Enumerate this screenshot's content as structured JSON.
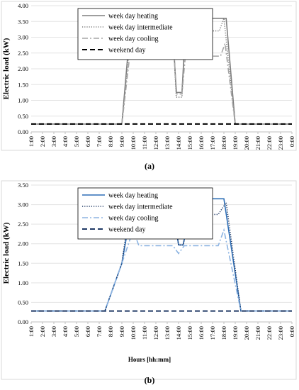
{
  "chart_data": [
    {
      "type": "line",
      "panel_label": "(a)",
      "title": "",
      "xlabel": "",
      "ylabel": "Electric load (kW)",
      "ylim": [
        0,
        4
      ],
      "yticks": [
        "0.00",
        "0.50",
        "1.00",
        "1.50",
        "2.00",
        "2.50",
        "3.00",
        "3.50",
        "4.00"
      ],
      "grid": "horizontal",
      "legend_position": "top-left",
      "x": [
        "1:00",
        "2:00",
        "3:00",
        "4:00",
        "5:00",
        "6:00",
        "7:00",
        "8:00",
        "9:00",
        "10:00",
        "11:00",
        "12:00",
        "13:00",
        "14:00",
        "15:00",
        "16:00",
        "17:00",
        "18:00",
        "19:00",
        "20:00",
        "21:00",
        "22:00",
        "23:00",
        "0:00"
      ],
      "series": [
        {
          "name": "week day heating",
          "color": "#7f7f7f",
          "dash": "solid",
          "points": [
            [
              1,
              0.25
            ],
            [
              9,
              0.25
            ],
            [
              9.8,
              3.6
            ],
            [
              12.2,
              3.6
            ],
            [
              12.5,
              3.2
            ],
            [
              13.5,
              3.2
            ],
            [
              13.8,
              1.25
            ],
            [
              14.3,
              1.25
            ],
            [
              14.6,
              3.2
            ],
            [
              15.5,
              3.2
            ],
            [
              15.9,
              3.6
            ],
            [
              18.2,
              3.6
            ],
            [
              19,
              0.25
            ],
            [
              24,
              0.25
            ]
          ]
        },
        {
          "name": "week day intermediate",
          "color": "#7f7f7f",
          "dash": "dot",
          "points": [
            [
              1,
              0.25
            ],
            [
              9,
              0.25
            ],
            [
              9.9,
              3.6
            ],
            [
              10.3,
              3.2
            ],
            [
              12.2,
              3.2
            ],
            [
              13.5,
              3.2
            ],
            [
              13.8,
              1.1
            ],
            [
              14.3,
              1.1
            ],
            [
              14.6,
              3.2
            ],
            [
              15.6,
              3.2
            ],
            [
              16,
              3.2
            ],
            [
              17.6,
              3.2
            ],
            [
              18,
              3.6
            ],
            [
              19,
              0.25
            ],
            [
              24,
              0.25
            ]
          ]
        },
        {
          "name": "week day cooling",
          "color": "#a6a6a6",
          "dash": "dashdot",
          "points": [
            [
              1,
              0.25
            ],
            [
              9,
              0.25
            ],
            [
              9.8,
              2.75
            ],
            [
              10.3,
              2.4
            ],
            [
              13.6,
              2.4
            ],
            [
              13.85,
              1.2
            ],
            [
              14.3,
              1.2
            ],
            [
              14.6,
              2.4
            ],
            [
              17.7,
              2.4
            ],
            [
              18.1,
              2.8
            ],
            [
              19,
              0.25
            ],
            [
              24,
              0.25
            ]
          ]
        },
        {
          "name": "weekend day",
          "color": "#000000",
          "dash": "dash",
          "points": [
            [
              1,
              0.25
            ],
            [
              24,
              0.25
            ]
          ]
        }
      ]
    },
    {
      "type": "line",
      "panel_label": "(b)",
      "title": "",
      "xlabel": "Hours [hh:mm]",
      "ylabel": "Electric load (kW)",
      "ylim": [
        0,
        3.5
      ],
      "yticks": [
        "0.00",
        "0.50",
        "1.00",
        "1.50",
        "2.00",
        "2.50",
        "3.00",
        "3.50"
      ],
      "grid": "horizontal",
      "legend_position": "top-left",
      "x": [
        "1:00",
        "2:00",
        "3:00",
        "4:00",
        "5:00",
        "6:00",
        "7:00",
        "8:00",
        "9:00",
        "10:00",
        "11:00",
        "12:00",
        "13:00",
        "14:00",
        "15:00",
        "16:00",
        "17:00",
        "18:00",
        "19:00",
        "20:00",
        "21:00",
        "22:00",
        "23:00",
        "0:00"
      ],
      "series": [
        {
          "name": "week day heating",
          "color": "#2e6fb7",
          "dash": "solid",
          "points": [
            [
              1,
              0.28
            ],
            [
              7.5,
              0.28
            ],
            [
              9,
              1.5
            ],
            [
              10,
              3.15
            ],
            [
              12,
              3.15
            ],
            [
              12.5,
              2.75
            ],
            [
              13.6,
              2.75
            ],
            [
              14,
              1.97
            ],
            [
              14.4,
              1.97
            ],
            [
              15,
              2.75
            ],
            [
              15.5,
              2.75
            ],
            [
              16,
              3.15
            ],
            [
              18,
              3.15
            ],
            [
              19.5,
              0.28
            ],
            [
              24,
              0.28
            ]
          ]
        },
        {
          "name": "week day intermediate",
          "color": "#1f3864",
          "dash": "dot",
          "points": [
            [
              1,
              0.28
            ],
            [
              7.5,
              0.28
            ],
            [
              9,
              1.5
            ],
            [
              9.7,
              2.95
            ],
            [
              10.5,
              2.75
            ],
            [
              13.6,
              2.75
            ],
            [
              14,
              1.97
            ],
            [
              14.4,
              1.97
            ],
            [
              15,
              2.75
            ],
            [
              17.5,
              2.75
            ],
            [
              18.2,
              3.05
            ],
            [
              19.5,
              0.28
            ],
            [
              24,
              0.28
            ]
          ]
        },
        {
          "name": "week day cooling",
          "color": "#8db4e2",
          "dash": "dashdot",
          "points": [
            [
              1,
              0.28
            ],
            [
              7.5,
              0.28
            ],
            [
              9,
              1.5
            ],
            [
              10,
              2.35
            ],
            [
              10.5,
              1.95
            ],
            [
              13.5,
              1.95
            ],
            [
              14,
              1.75
            ],
            [
              14.5,
              1.95
            ],
            [
              17.5,
              1.95
            ],
            [
              18,
              2.35
            ],
            [
              19.5,
              0.28
            ],
            [
              24,
              0.28
            ]
          ]
        },
        {
          "name": "weekend day",
          "color": "#1f3864",
          "dash": "dash",
          "points": [
            [
              1,
              0.28
            ],
            [
              24,
              0.28
            ]
          ]
        }
      ]
    }
  ]
}
